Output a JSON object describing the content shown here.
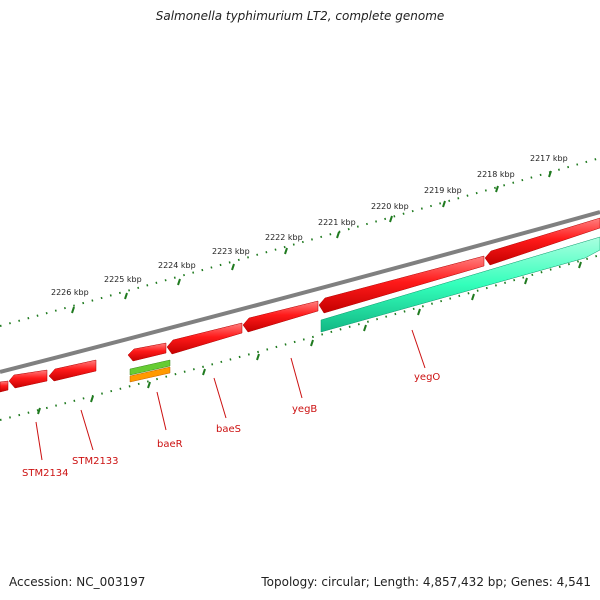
{
  "title": "Salmonella typhimurium LT2, complete genome",
  "footer": {
    "accession": "Accession: NC_003197",
    "info": "Topology: circular; Length: 4,857,432 bp; Genes: 4,541"
  },
  "kbp_labels": [
    "2217 kbp",
    "2218 kbp",
    "2219 kbp",
    "2220 kbp",
    "2221 kbp",
    "2222 kbp",
    "2223 kbp",
    "2224 kbp",
    "2225 kbp",
    "2226 kbp"
  ],
  "gene_labels": [
    "yegO",
    "yegB",
    "baeS",
    "baeR",
    "STM2133",
    "STM2134"
  ],
  "colors": {
    "backbone": "#808080",
    "gene_reverse": "#ff1a1a",
    "gene_forward": "#33ffbb",
    "tick": "#1f7a1f",
    "label": "#cc1111",
    "feature_green": "#66cc33",
    "feature_orange": "#ff9900"
  }
}
